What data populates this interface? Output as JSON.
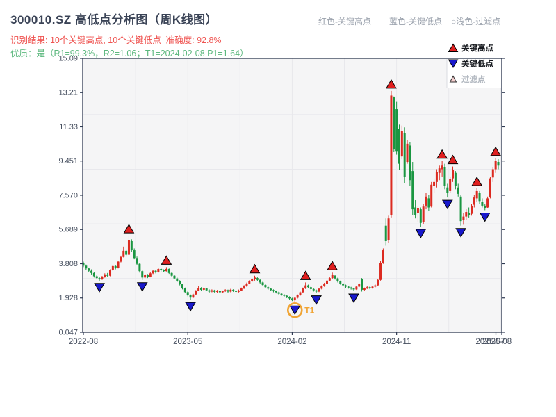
{
  "header": {
    "title": "300010.SZ 高低点分析图（周K线图）",
    "notes": [
      "红色-关键高点",
      "蓝色-关键低点",
      "○浅色-过滤点"
    ],
    "result_line": "识别结果: 10个关键高点, 10个关键低点  准确度: 92.8%",
    "quality_line": "优质：是（R1=99.3%，R2=1.06；T1=2024-02-08 P1=1.64）"
  },
  "chart_data": {
    "type": "candlestick",
    "period": "weekly",
    "x_start": "2022-08",
    "x_tick_labels": [
      "2022-08",
      "2023-05",
      "2024-02",
      "2024-11"
    ],
    "x_tick_indices": [
      0,
      39,
      78,
      117
    ],
    "x_end_tick_labels": [
      "2025-07",
      "2025-08"
    ],
    "x_grid_indices": [
      19.5,
      39,
      58.5,
      78,
      97.5,
      117,
      136.5,
      156
    ],
    "y_tick_labels": [
      "0.047",
      "1.928",
      "3.808",
      "5.689",
      "7.570",
      "9.451",
      "11.33",
      "13.21",
      "15.09"
    ],
    "ylim": [
      0.047,
      15.09
    ],
    "y_grid_values": [
      3,
      6,
      9,
      12,
      15
    ],
    "grid": true,
    "legend": [
      {
        "label": "关键高点",
        "marker": "triangle-up",
        "fill": "#e01f1f"
      },
      {
        "label": "关键低点",
        "marker": "triangle-down",
        "fill": "#1818cc"
      },
      {
        "label": "过滤点",
        "marker": "triangle-up-light",
        "fill": "#f6cfcf"
      }
    ],
    "key_high_indices": [
      17,
      31,
      64,
      83,
      93,
      115,
      134,
      138,
      147,
      154
    ],
    "key_low_indices": [
      6,
      22,
      40,
      79,
      87,
      101,
      126,
      136,
      141,
      150
    ],
    "t1": {
      "index": 79,
      "label": "T1",
      "date": "2024-02-08",
      "price": 1.64
    },
    "colors": {
      "up": "#dc2a20",
      "down": "#1a9641",
      "marker_high": "#e01f1f",
      "marker_low": "#1818cc",
      "marker_stroke": "#000000",
      "filtered_fill": "#f6cfcf",
      "filtered_stroke": "#333333",
      "t1_ring": "#f0a434",
      "plot_bg": "#f5f5f6",
      "grid": "#e8e8ec",
      "axis": "#2f3a52",
      "tick_label": "#454e5e",
      "legend_text": "#15181d",
      "legend_muted": "#b4bac2",
      "legend_bg": "#ffffff",
      "legend_edge": "#d9dbe0"
    },
    "candles": [
      [
        3.85,
        3.92,
        3.62,
        3.7
      ],
      [
        3.7,
        3.76,
        3.48,
        3.55
      ],
      [
        3.55,
        3.6,
        3.35,
        3.42
      ],
      [
        3.42,
        3.5,
        3.22,
        3.3
      ],
      [
        3.3,
        3.34,
        3.05,
        3.12
      ],
      [
        3.12,
        3.18,
        2.95,
        3.02
      ],
      [
        3.02,
        3.06,
        2.88,
        2.95
      ],
      [
        2.95,
        3.14,
        2.92,
        3.08
      ],
      [
        3.08,
        3.28,
        3.04,
        3.22
      ],
      [
        3.22,
        3.3,
        3.08,
        3.15
      ],
      [
        3.15,
        3.5,
        3.12,
        3.45
      ],
      [
        3.45,
        3.74,
        3.42,
        3.68
      ],
      [
        3.68,
        3.75,
        3.5,
        3.58
      ],
      [
        3.58,
        3.98,
        3.55,
        3.92
      ],
      [
        3.92,
        4.25,
        3.88,
        4.18
      ],
      [
        4.18,
        4.75,
        4.15,
        4.52
      ],
      [
        4.52,
        4.6,
        4.2,
        4.3
      ],
      [
        4.3,
        5.35,
        4.28,
        5.1
      ],
      [
        5.05,
        5.15,
        4.45,
        4.55
      ],
      [
        4.55,
        4.65,
        4.05,
        4.12
      ],
      [
        4.12,
        4.2,
        3.72,
        3.8
      ],
      [
        3.8,
        3.85,
        3.32,
        3.4
      ],
      [
        3.4,
        3.45,
        2.92,
        3.05
      ],
      [
        3.05,
        3.25,
        3.0,
        3.18
      ],
      [
        3.18,
        3.24,
        3.02,
        3.1
      ],
      [
        3.1,
        3.33,
        3.06,
        3.28
      ],
      [
        3.28,
        3.48,
        3.24,
        3.42
      ],
      [
        3.42,
        3.47,
        3.28,
        3.35
      ],
      [
        3.35,
        3.58,
        3.32,
        3.52
      ],
      [
        3.52,
        3.56,
        3.38,
        3.45
      ],
      [
        3.45,
        3.5,
        3.33,
        3.4
      ],
      [
        3.4,
        3.62,
        3.38,
        3.52
      ],
      [
        3.52,
        3.55,
        3.25,
        3.3
      ],
      [
        3.3,
        3.36,
        3.1,
        3.15
      ],
      [
        3.15,
        3.2,
        2.95,
        3.0
      ],
      [
        3.0,
        3.05,
        2.8,
        2.85
      ],
      [
        2.85,
        2.9,
        2.62,
        2.68
      ],
      [
        2.68,
        2.72,
        2.4,
        2.45
      ],
      [
        2.45,
        2.5,
        2.2,
        2.25
      ],
      [
        2.25,
        2.3,
        2.02,
        2.08
      ],
      [
        2.08,
        2.12,
        1.83,
        1.95
      ],
      [
        1.95,
        2.16,
        1.92,
        2.12
      ],
      [
        2.12,
        2.36,
        2.08,
        2.32
      ],
      [
        2.32,
        2.58,
        2.3,
        2.48
      ],
      [
        2.48,
        2.52,
        2.32,
        2.38
      ],
      [
        2.38,
        2.5,
        2.34,
        2.45
      ],
      [
        2.45,
        2.49,
        2.3,
        2.35
      ],
      [
        2.35,
        2.4,
        2.22,
        2.28
      ],
      [
        2.28,
        2.4,
        2.24,
        2.35
      ],
      [
        2.35,
        2.38,
        2.2,
        2.26
      ],
      [
        2.26,
        2.37,
        2.22,
        2.32
      ],
      [
        2.32,
        2.35,
        2.18,
        2.24
      ],
      [
        2.24,
        2.34,
        2.2,
        2.3
      ],
      [
        2.3,
        2.41,
        2.26,
        2.36
      ],
      [
        2.36,
        2.39,
        2.22,
        2.28
      ],
      [
        2.28,
        2.43,
        2.24,
        2.38
      ],
      [
        2.38,
        2.41,
        2.26,
        2.32
      ],
      [
        2.32,
        2.35,
        2.21,
        2.27
      ],
      [
        2.27,
        2.39,
        2.23,
        2.34
      ],
      [
        2.34,
        2.5,
        2.3,
        2.45
      ],
      [
        2.45,
        2.63,
        2.42,
        2.58
      ],
      [
        2.58,
        2.77,
        2.54,
        2.72
      ],
      [
        2.72,
        2.9,
        2.68,
        2.85
      ],
      [
        2.85,
        3.0,
        2.8,
        2.95
      ],
      [
        2.95,
        3.15,
        2.88,
        3.05
      ],
      [
        3.02,
        3.06,
        2.85,
        2.92
      ],
      [
        2.92,
        2.96,
        2.72,
        2.78
      ],
      [
        2.78,
        2.82,
        2.58,
        2.64
      ],
      [
        2.64,
        2.68,
        2.46,
        2.52
      ],
      [
        2.52,
        2.56,
        2.38,
        2.44
      ],
      [
        2.44,
        2.48,
        2.3,
        2.36
      ],
      [
        2.36,
        2.4,
        2.24,
        2.3
      ],
      [
        2.3,
        2.34,
        2.18,
        2.24
      ],
      [
        2.24,
        2.28,
        2.1,
        2.16
      ],
      [
        2.16,
        2.2,
        2.05,
        2.1
      ],
      [
        2.1,
        2.14,
        1.99,
        2.05
      ],
      [
        2.05,
        2.09,
        1.92,
        1.98
      ],
      [
        1.98,
        2.02,
        1.84,
        1.9
      ],
      [
        1.9,
        1.94,
        1.76,
        1.82
      ],
      [
        1.8,
        1.98,
        1.64,
        1.94
      ],
      [
        1.94,
        2.12,
        1.9,
        2.08
      ],
      [
        2.08,
        2.28,
        2.05,
        2.24
      ],
      [
        2.24,
        2.5,
        2.21,
        2.45
      ],
      [
        2.45,
        2.78,
        2.42,
        2.62
      ],
      [
        2.62,
        2.66,
        2.46,
        2.52
      ],
      [
        2.52,
        2.56,
        2.36,
        2.42
      ],
      [
        2.42,
        2.46,
        2.28,
        2.35
      ],
      [
        2.35,
        2.39,
        2.2,
        2.28
      ],
      [
        2.28,
        2.48,
        2.25,
        2.44
      ],
      [
        2.44,
        2.62,
        2.4,
        2.58
      ],
      [
        2.58,
        2.76,
        2.54,
        2.72
      ],
      [
        2.72,
        2.92,
        2.68,
        2.88
      ],
      [
        2.88,
        3.06,
        2.84,
        3.02
      ],
      [
        3.02,
        3.32,
        2.98,
        3.18
      ],
      [
        3.15,
        3.2,
        2.94,
        3.0
      ],
      [
        3.0,
        3.04,
        2.78,
        2.84
      ],
      [
        2.84,
        2.88,
        2.66,
        2.72
      ],
      [
        2.72,
        2.76,
        2.56,
        2.62
      ],
      [
        2.62,
        2.66,
        2.49,
        2.55
      ],
      [
        2.55,
        2.6,
        2.44,
        2.5
      ],
      [
        2.5,
        2.54,
        2.39,
        2.45
      ],
      [
        2.45,
        2.49,
        2.3,
        2.4
      ],
      [
        2.4,
        2.6,
        2.37,
        2.55
      ],
      [
        2.55,
        2.73,
        2.52,
        2.68
      ],
      [
        2.95,
        3.02,
        2.28,
        2.38
      ],
      [
        2.38,
        2.5,
        2.34,
        2.45
      ],
      [
        2.45,
        2.57,
        2.42,
        2.52
      ],
      [
        2.52,
        2.56,
        2.41,
        2.48
      ],
      [
        2.48,
        2.6,
        2.44,
        2.55
      ],
      [
        2.55,
        2.67,
        2.51,
        2.62
      ],
      [
        2.62,
        2.97,
        2.58,
        2.92
      ],
      [
        2.92,
        3.95,
        2.88,
        3.85
      ],
      [
        3.85,
        4.65,
        3.8,
        4.55
      ],
      [
        5.9,
        6.3,
        4.8,
        5.05
      ],
      [
        5.1,
        6.45,
        4.95,
        6.3
      ],
      [
        6.5,
        13.3,
        6.35,
        13.05
      ],
      [
        12.95,
        13.0,
        9.95,
        10.1
      ],
      [
        12.3,
        12.7,
        9.8,
        10.0
      ],
      [
        11.2,
        11.45,
        8.95,
        9.3
      ],
      [
        9.7,
        11.4,
        9.55,
        11.1
      ],
      [
        11.0,
        11.3,
        8.25,
        8.6
      ],
      [
        9.4,
        10.6,
        9.3,
        10.4
      ],
      [
        10.3,
        10.5,
        8.1,
        8.4
      ],
      [
        8.9,
        9.4,
        6.5,
        6.8
      ],
      [
        6.9,
        7.3,
        6.3,
        6.5
      ],
      [
        6.6,
        7.0,
        6.1,
        6.85
      ],
      [
        6.8,
        6.9,
        5.85,
        6.05
      ],
      [
        6.1,
        7.1,
        6.0,
        6.95
      ],
      [
        7.0,
        7.7,
        6.8,
        7.5
      ],
      [
        7.4,
        7.6,
        6.7,
        6.9
      ],
      [
        6.95,
        8.3,
        6.9,
        8.15
      ],
      [
        8.1,
        8.5,
        7.7,
        8.3
      ],
      [
        8.3,
        9.0,
        8.0,
        8.85
      ],
      [
        8.8,
        9.2,
        8.4,
        9.05
      ],
      [
        9.0,
        9.45,
        8.6,
        9.2
      ],
      [
        9.1,
        9.3,
        7.9,
        8.1
      ],
      [
        8.0,
        8.2,
        7.45,
        7.7
      ],
      [
        7.8,
        8.6,
        7.7,
        8.45
      ],
      [
        8.5,
        9.15,
        8.3,
        8.95
      ],
      [
        8.8,
        8.9,
        7.9,
        8.1
      ],
      [
        8.0,
        8.2,
        7.5,
        7.65
      ],
      [
        7.5,
        7.6,
        5.9,
        6.15
      ],
      [
        6.2,
        6.6,
        5.95,
        6.4
      ],
      [
        6.4,
        6.8,
        6.2,
        6.65
      ],
      [
        6.6,
        6.9,
        6.35,
        6.5
      ],
      [
        6.55,
        7.1,
        6.45,
        7.0
      ],
      [
        7.05,
        7.6,
        6.9,
        7.45
      ],
      [
        7.4,
        7.95,
        7.2,
        7.8
      ],
      [
        7.7,
        7.8,
        7.1,
        7.25
      ],
      [
        7.2,
        7.4,
        6.9,
        7.0
      ],
      [
        7.0,
        7.1,
        6.75,
        6.85
      ],
      [
        6.9,
        7.5,
        6.85,
        7.4
      ],
      [
        7.45,
        8.6,
        7.4,
        8.5
      ],
      [
        8.55,
        9.1,
        8.3,
        9.0
      ],
      [
        9.0,
        9.6,
        8.8,
        9.45
      ],
      [
        9.4,
        9.55,
        9.0,
        9.2
      ]
    ]
  }
}
